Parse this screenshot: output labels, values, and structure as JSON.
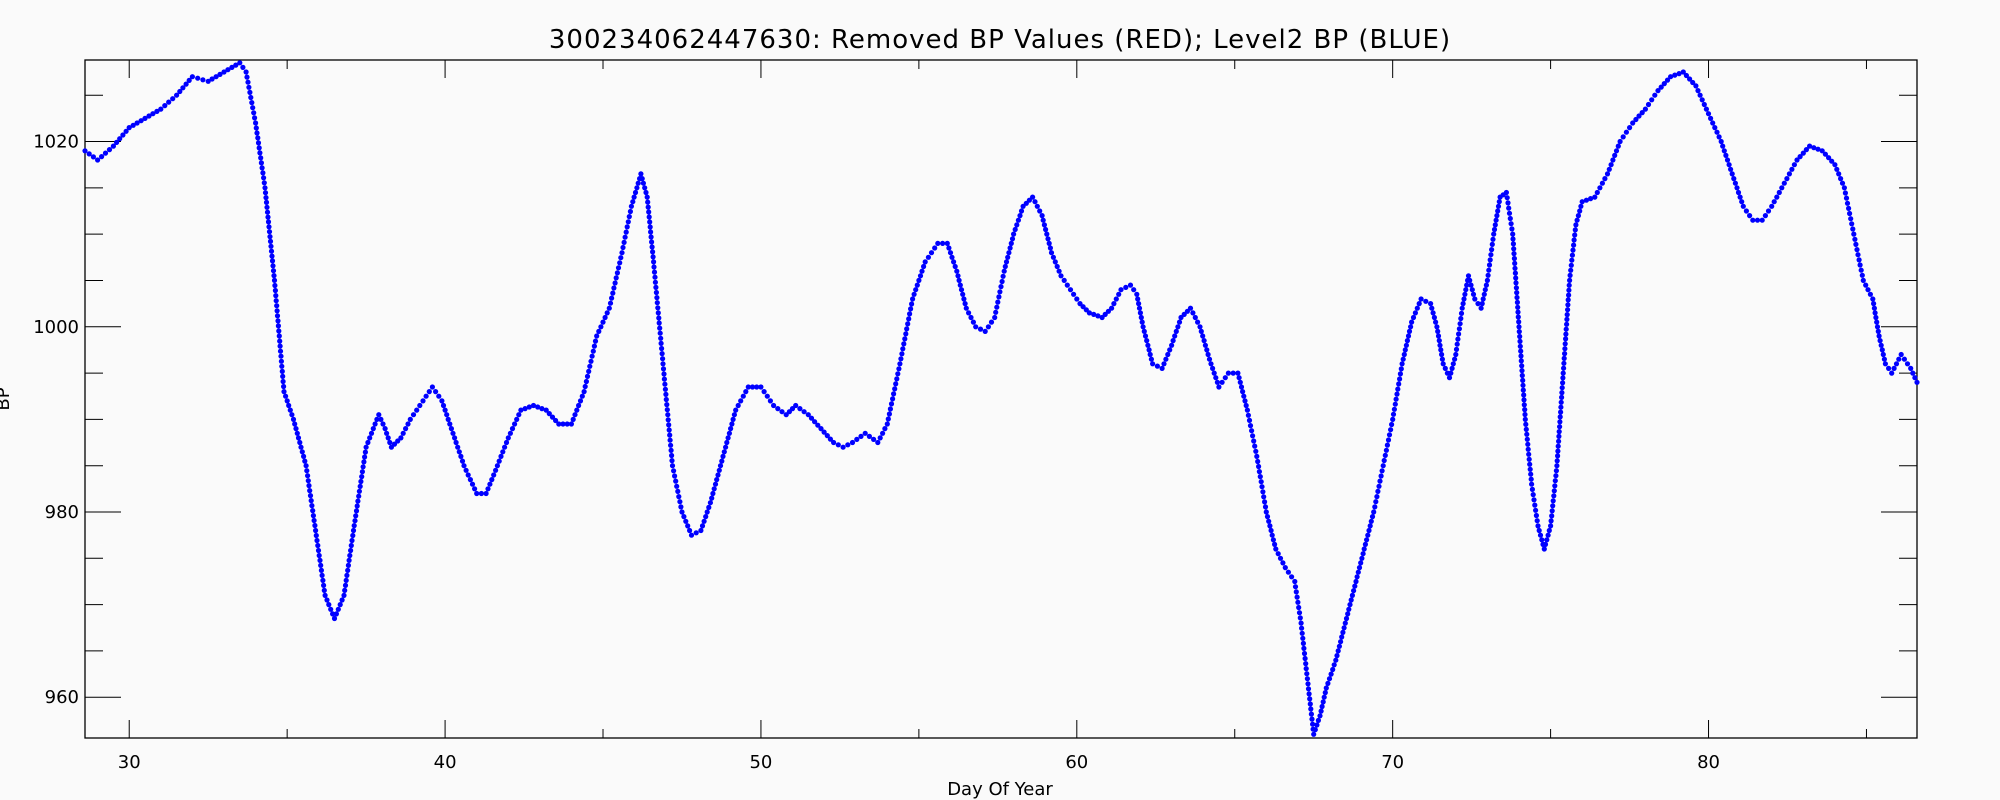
{
  "chart_data": {
    "type": "scatter",
    "title": "300234062447630: Removed BP Values (RED); Level2 BP (BLUE)",
    "xlabel": "Day Of Year",
    "ylabel": "BP",
    "xlim": [
      28.6,
      86.6
    ],
    "ylim": [
      955.6,
      1028.8
    ],
    "xticks": [
      30,
      40,
      50,
      60,
      70,
      80
    ],
    "yticks": [
      960,
      980,
      1000,
      1020
    ],
    "x_minor_step": 5,
    "y_minor_step": 5,
    "grid": false,
    "legend": "none",
    "series": [
      {
        "name": "Level2 BP",
        "color": "#0000ff",
        "points": [
          [
            28.6,
            1019
          ],
          [
            29.0,
            1018
          ],
          [
            29.5,
            1019.5
          ],
          [
            30.0,
            1021.5
          ],
          [
            30.5,
            1022.5
          ],
          [
            31.0,
            1023.5
          ],
          [
            31.5,
            1025
          ],
          [
            32.0,
            1027
          ],
          [
            32.5,
            1026.5
          ],
          [
            33.0,
            1027.5
          ],
          [
            33.5,
            1028.5
          ],
          [
            33.7,
            1027.5
          ],
          [
            34.0,
            1022
          ],
          [
            34.3,
            1015
          ],
          [
            34.6,
            1005
          ],
          [
            34.9,
            993
          ],
          [
            35.2,
            990
          ],
          [
            35.6,
            985
          ],
          [
            35.9,
            978
          ],
          [
            36.2,
            971
          ],
          [
            36.5,
            968.5
          ],
          [
            36.8,
            971
          ],
          [
            37.1,
            978
          ],
          [
            37.5,
            987
          ],
          [
            37.9,
            990.5
          ],
          [
            38.1,
            989
          ],
          [
            38.3,
            987
          ],
          [
            38.6,
            988
          ],
          [
            38.9,
            990
          ],
          [
            39.3,
            992
          ],
          [
            39.6,
            993.5
          ],
          [
            39.9,
            992
          ],
          [
            40.2,
            989
          ],
          [
            40.6,
            985
          ],
          [
            41.0,
            982
          ],
          [
            41.3,
            982
          ],
          [
            41.6,
            984.5
          ],
          [
            42.0,
            988
          ],
          [
            42.4,
            991
          ],
          [
            42.8,
            991.5
          ],
          [
            43.2,
            991
          ],
          [
            43.6,
            989.5
          ],
          [
            44.0,
            989.5
          ],
          [
            44.4,
            993
          ],
          [
            44.8,
            999
          ],
          [
            45.2,
            1002
          ],
          [
            45.6,
            1008
          ],
          [
            45.9,
            1013
          ],
          [
            46.2,
            1016.5
          ],
          [
            46.4,
            1014
          ],
          [
            46.6,
            1007
          ],
          [
            46.9,
            996
          ],
          [
            47.2,
            985
          ],
          [
            47.5,
            980
          ],
          [
            47.8,
            977.5
          ],
          [
            48.1,
            978
          ],
          [
            48.4,
            981
          ],
          [
            48.8,
            986
          ],
          [
            49.2,
            991
          ],
          [
            49.6,
            993.5
          ],
          [
            50.0,
            993.5
          ],
          [
            50.4,
            991.5
          ],
          [
            50.8,
            990.5
          ],
          [
            51.1,
            991.5
          ],
          [
            51.5,
            990.5
          ],
          [
            51.9,
            989
          ],
          [
            52.3,
            987.5
          ],
          [
            52.6,
            987
          ],
          [
            52.9,
            987.5
          ],
          [
            53.3,
            988.5
          ],
          [
            53.7,
            987.5
          ],
          [
            54.0,
            989.5
          ],
          [
            54.4,
            996
          ],
          [
            54.8,
            1003
          ],
          [
            55.2,
            1007
          ],
          [
            55.6,
            1009
          ],
          [
            55.9,
            1009
          ],
          [
            56.2,
            1006
          ],
          [
            56.5,
            1002
          ],
          [
            56.8,
            1000
          ],
          [
            57.1,
            999.5
          ],
          [
            57.4,
            1001
          ],
          [
            57.7,
            1006
          ],
          [
            58.0,
            1010
          ],
          [
            58.3,
            1013
          ],
          [
            58.6,
            1014
          ],
          [
            58.9,
            1012
          ],
          [
            59.2,
            1008
          ],
          [
            59.5,
            1005.5
          ],
          [
            59.8,
            1004
          ],
          [
            60.1,
            1002.5
          ],
          [
            60.4,
            1001.5
          ],
          [
            60.8,
            1001
          ],
          [
            61.1,
            1002
          ],
          [
            61.4,
            1004
          ],
          [
            61.7,
            1004.5
          ],
          [
            61.9,
            1003.5
          ],
          [
            62.1,
            1000
          ],
          [
            62.4,
            996
          ],
          [
            62.7,
            995.5
          ],
          [
            63.0,
            998
          ],
          [
            63.3,
            1001
          ],
          [
            63.6,
            1002
          ],
          [
            63.9,
            1000
          ],
          [
            64.2,
            996.5
          ],
          [
            64.5,
            993.5
          ],
          [
            64.8,
            995
          ],
          [
            65.1,
            995
          ],
          [
            65.4,
            991
          ],
          [
            65.7,
            986
          ],
          [
            66.0,
            980
          ],
          [
            66.3,
            976
          ],
          [
            66.6,
            974
          ],
          [
            66.9,
            972.5
          ],
          [
            67.1,
            968
          ],
          [
            67.3,
            962
          ],
          [
            67.5,
            956
          ],
          [
            67.7,
            958
          ],
          [
            67.9,
            961
          ],
          [
            68.2,
            964
          ],
          [
            68.5,
            968
          ],
          [
            68.8,
            972
          ],
          [
            69.1,
            976
          ],
          [
            69.4,
            980
          ],
          [
            69.7,
            985
          ],
          [
            70.0,
            990
          ],
          [
            70.3,
            996
          ],
          [
            70.6,
            1000.5
          ],
          [
            70.9,
            1003
          ],
          [
            71.2,
            1002.5
          ],
          [
            71.4,
            1000
          ],
          [
            71.6,
            996
          ],
          [
            71.8,
            994.5
          ],
          [
            72.0,
            997
          ],
          [
            72.2,
            1002
          ],
          [
            72.4,
            1005.5
          ],
          [
            72.6,
            1003
          ],
          [
            72.8,
            1002
          ],
          [
            73.0,
            1005
          ],
          [
            73.2,
            1010
          ],
          [
            73.4,
            1014
          ],
          [
            73.6,
            1014.5
          ],
          [
            73.8,
            1010
          ],
          [
            74.0,
            1000
          ],
          [
            74.2,
            990
          ],
          [
            74.4,
            983
          ],
          [
            74.6,
            978.5
          ],
          [
            74.8,
            976
          ],
          [
            75.0,
            978.5
          ],
          [
            75.2,
            985
          ],
          [
            75.4,
            995
          ],
          [
            75.6,
            1005
          ],
          [
            75.8,
            1011
          ],
          [
            76.0,
            1013.5
          ],
          [
            76.4,
            1014
          ],
          [
            76.8,
            1016.5
          ],
          [
            77.2,
            1020
          ],
          [
            77.6,
            1022
          ],
          [
            78.0,
            1023.5
          ],
          [
            78.4,
            1025.5
          ],
          [
            78.8,
            1027
          ],
          [
            79.2,
            1027.5
          ],
          [
            79.6,
            1026
          ],
          [
            80.0,
            1023
          ],
          [
            80.4,
            1020
          ],
          [
            80.8,
            1016
          ],
          [
            81.1,
            1013
          ],
          [
            81.4,
            1011.5
          ],
          [
            81.7,
            1011.5
          ],
          [
            82.0,
            1013
          ],
          [
            82.4,
            1015.5
          ],
          [
            82.8,
            1018
          ],
          [
            83.2,
            1019.5
          ],
          [
            83.6,
            1019
          ],
          [
            84.0,
            1017.5
          ],
          [
            84.3,
            1015
          ],
          [
            84.6,
            1010
          ],
          [
            84.9,
            1005
          ],
          [
            85.2,
            1003
          ],
          [
            85.4,
            999
          ],
          [
            85.6,
            996
          ],
          [
            85.8,
            995
          ],
          [
            86.1,
            997
          ],
          [
            86.4,
            995.5
          ],
          [
            86.6,
            994
          ]
        ]
      }
    ]
  }
}
